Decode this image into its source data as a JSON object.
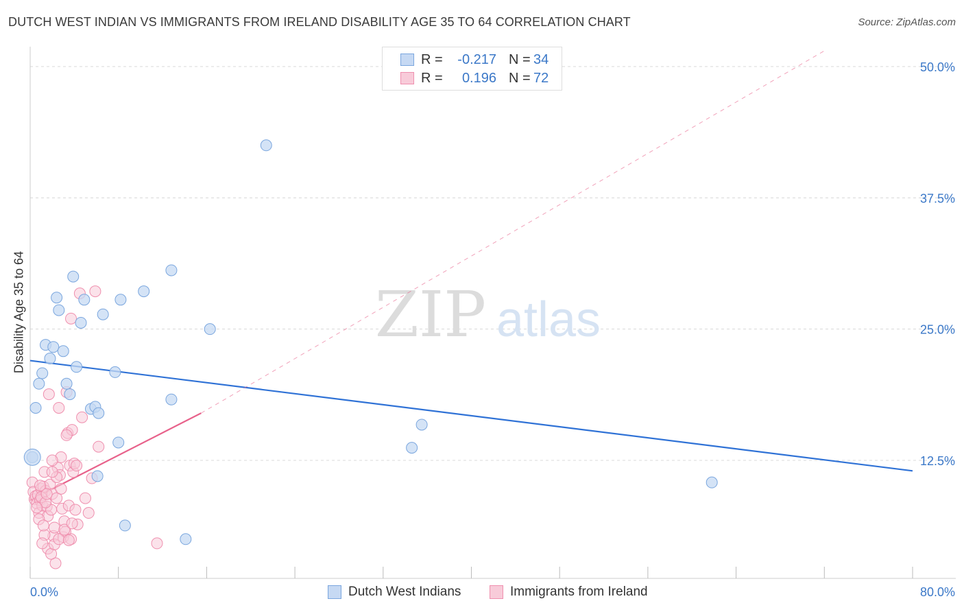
{
  "header": {
    "title": "DUTCH WEST INDIAN VS IMMIGRANTS FROM IRELAND DISABILITY AGE 35 TO 64 CORRELATION CHART",
    "source": "Source: ZipAtlas.com"
  },
  "legend": {
    "r_label": "R =",
    "n_label": "N =",
    "blue": {
      "r": "-0.217",
      "n": "34"
    },
    "pink": {
      "r": "0.196",
      "n": "72"
    }
  },
  "watermark": {
    "zip": "ZIP",
    "atlas": "atlas"
  },
  "colors": {
    "blue_fill": "#c6d9f3",
    "blue_stroke": "#7aa6de",
    "blue_line": "#2f72d6",
    "pink_fill": "#f8cbd9",
    "pink_stroke": "#ef8fae",
    "pink_line": "#e8628b"
  },
  "chart_data": {
    "type": "scatter",
    "title": "DUTCH WEST INDIAN VS IMMIGRANTS FROM IRELAND DISABILITY AGE 35 TO 64 CORRELATION CHART",
    "xlabel": "",
    "ylabel": "Disability Age 35 to 64",
    "xlim": [
      0,
      80
    ],
    "ylim": [
      0,
      52
    ],
    "x_tick_labels": [
      "0.0%",
      "80.0%"
    ],
    "y_ticks": [
      12.5,
      25.0,
      37.5,
      50.0
    ],
    "y_tick_labels": [
      "12.5%",
      "25.0%",
      "37.5%",
      "50.0%"
    ],
    "series": [
      {
        "name": "Dutch West Indians",
        "color": "blue",
        "points": [
          [
            0.2,
            12.8
          ],
          [
            0.5,
            17.5
          ],
          [
            0.8,
            19.8
          ],
          [
            1.1,
            20.8
          ],
          [
            1.4,
            23.5
          ],
          [
            1.8,
            22.2
          ],
          [
            2.1,
            23.3
          ],
          [
            2.4,
            28.0
          ],
          [
            2.6,
            26.8
          ],
          [
            3.0,
            22.9
          ],
          [
            3.3,
            19.8
          ],
          [
            3.6,
            18.8
          ],
          [
            3.9,
            30.0
          ],
          [
            4.2,
            21.4
          ],
          [
            4.6,
            25.6
          ],
          [
            4.9,
            27.8
          ],
          [
            5.5,
            17.4
          ],
          [
            5.9,
            17.6
          ],
          [
            6.2,
            17.0
          ],
          [
            6.6,
            26.4
          ],
          [
            7.7,
            20.9
          ],
          [
            6.1,
            11.0
          ],
          [
            8.0,
            14.2
          ],
          [
            8.2,
            27.8
          ],
          [
            8.6,
            6.3
          ],
          [
            10.3,
            28.6
          ],
          [
            12.8,
            30.6
          ],
          [
            12.8,
            18.3
          ],
          [
            14.1,
            5.0
          ],
          [
            16.3,
            25.0
          ],
          [
            21.4,
            42.5
          ],
          [
            34.6,
            13.7
          ],
          [
            35.5,
            15.9
          ],
          [
            61.8,
            10.4
          ]
        ]
      },
      {
        "name": "Immigrants from Ireland",
        "color": "pink",
        "points": [
          [
            0.2,
            10.4
          ],
          [
            0.3,
            9.5
          ],
          [
            0.4,
            8.8
          ],
          [
            0.5,
            9.1
          ],
          [
            0.6,
            8.4
          ],
          [
            0.7,
            9.2
          ],
          [
            0.8,
            7.5
          ],
          [
            0.9,
            8.7
          ],
          [
            1.0,
            9.8
          ],
          [
            1.1,
            8.2
          ],
          [
            1.2,
            10.0
          ],
          [
            1.3,
            11.4
          ],
          [
            1.4,
            9.6
          ],
          [
            1.5,
            8.1
          ],
          [
            1.6,
            7.2
          ],
          [
            1.7,
            18.8
          ],
          [
            1.8,
            10.2
          ],
          [
            1.9,
            7.8
          ],
          [
            2.0,
            9.3
          ],
          [
            2.1,
            5.3
          ],
          [
            2.2,
            6.1
          ],
          [
            2.3,
            2.7
          ],
          [
            2.4,
            8.9
          ],
          [
            2.5,
            11.8
          ],
          [
            2.6,
            17.5
          ],
          [
            2.7,
            11.1
          ],
          [
            2.8,
            12.8
          ],
          [
            2.9,
            7.9
          ],
          [
            3.0,
            5.2
          ],
          [
            3.1,
            6.7
          ],
          [
            3.2,
            5.7
          ],
          [
            3.3,
            19.0
          ],
          [
            3.4,
            15.1
          ],
          [
            3.5,
            8.2
          ],
          [
            3.6,
            12.0
          ],
          [
            3.7,
            5.0
          ],
          [
            3.8,
            15.4
          ],
          [
            3.9,
            11.4
          ],
          [
            4.0,
            12.2
          ],
          [
            4.1,
            7.8
          ],
          [
            4.3,
            6.4
          ],
          [
            4.5,
            28.4
          ],
          [
            4.7,
            16.6
          ],
          [
            5.0,
            8.9
          ],
          [
            5.3,
            7.5
          ],
          [
            5.6,
            10.8
          ],
          [
            5.9,
            28.6
          ],
          [
            6.2,
            13.8
          ],
          [
            11.5,
            4.6
          ],
          [
            0.8,
            6.9
          ],
          [
            1.6,
            4.1
          ],
          [
            1.9,
            3.6
          ],
          [
            2.2,
            4.5
          ],
          [
            2.6,
            5.0
          ],
          [
            3.1,
            5.9
          ],
          [
            3.5,
            4.9
          ],
          [
            1.3,
            5.4
          ],
          [
            2.0,
            12.5
          ],
          [
            1.0,
            9.0
          ],
          [
            1.4,
            8.5
          ],
          [
            0.6,
            8.0
          ],
          [
            1.2,
            6.3
          ],
          [
            2.4,
            10.9
          ],
          [
            3.7,
            26.0
          ],
          [
            3.3,
            14.9
          ],
          [
            2.8,
            9.8
          ],
          [
            4.2,
            12.0
          ],
          [
            1.5,
            9.3
          ],
          [
            0.9,
            10.1
          ],
          [
            2.0,
            11.4
          ],
          [
            3.8,
            6.5
          ],
          [
            1.1,
            4.6
          ]
        ]
      }
    ],
    "trend_lines": [
      {
        "series": "Dutch West Indians",
        "x": [
          0,
          80
        ],
        "y": [
          22.0,
          11.5
        ],
        "style": "solid"
      },
      {
        "series": "Immigrants from Ireland",
        "x": [
          0,
          15.5
        ],
        "y": [
          8.7,
          17.0
        ],
        "style": "solid"
      },
      {
        "series": "Immigrants from Ireland",
        "x": [
          15.5,
          72
        ],
        "y": [
          17.0,
          51.5
        ],
        "style": "dashed"
      }
    ]
  },
  "bottom_legend": {
    "items": [
      "Dutch West Indians",
      "Immigrants from Ireland"
    ]
  }
}
